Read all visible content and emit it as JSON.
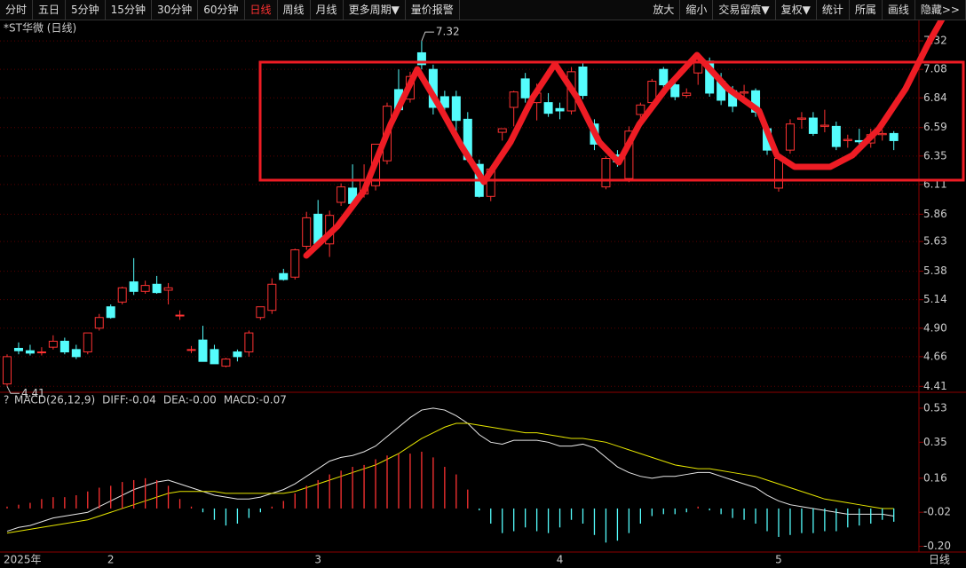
{
  "toolbar": {
    "left": [
      "分时",
      "五日",
      "5分钟",
      "15分钟",
      "30分钟",
      "60分钟",
      "日线",
      "周线",
      "月线",
      "更多周期▼",
      "量价报警"
    ],
    "active": 6,
    "right": [
      "放大",
      "缩小",
      "交易留痕▼",
      "复权▼",
      "统计",
      "所属",
      "画线",
      "隐藏>>"
    ]
  },
  "chart_data": [
    {
      "type": "candlestick",
      "title": "*ST华微 (日线)",
      "up_color": "#ff3232",
      "down_color": "#54fcfc",
      "categories": [
        "2025年",
        null,
        null,
        null,
        null,
        null,
        null,
        null,
        null,
        "2",
        null,
        null,
        null,
        null,
        null,
        null,
        null,
        null,
        null,
        null,
        null,
        null,
        null,
        null,
        null,
        null,
        null,
        "3",
        null,
        null,
        null,
        null,
        null,
        null,
        null,
        null,
        null,
        null,
        null,
        null,
        null,
        null,
        null,
        null,
        null,
        null,
        null,
        null,
        "4",
        null,
        null,
        null,
        null,
        null,
        null,
        null,
        null,
        null,
        null,
        null,
        null,
        null,
        null,
        null,
        null,
        null,
        null,
        "5",
        null,
        null,
        null,
        null,
        null,
        null,
        null,
        null,
        null,
        null
      ],
      "period_label": "日线",
      "open": [
        4.43,
        4.73,
        4.71,
        4.7,
        4.74,
        4.79,
        4.72,
        4.7,
        4.9,
        5.08,
        5.12,
        5.29,
        5.21,
        5.27,
        5.22,
        5.01,
        4.72,
        4.8,
        4.72,
        4.58,
        4.7,
        4.7,
        4.99,
        5.05,
        5.36,
        5.33,
        5.59,
        5.86,
        5.61,
        5.96,
        6.08,
        6.03,
        6.1,
        6.31,
        6.91,
        6.83,
        7.22,
        7.08,
        6.85,
        6.85,
        6.66,
        6.28,
        6.01,
        6.55,
        6.76,
        7.0,
        6.8,
        6.8,
        6.75,
        6.73,
        7.1,
        6.62,
        6.09,
        6.36,
        6.16,
        6.7,
        6.8,
        7.08,
        6.95,
        6.86,
        7.05,
        7.15,
        6.98,
        6.9,
        6.88,
        6.9,
        6.58,
        6.08,
        6.4,
        6.66,
        6.67,
        6.6,
        6.6,
        6.48,
        6.48,
        6.46,
        6.53,
        6.54
      ],
      "high": [
        4.68,
        4.78,
        4.76,
        4.74,
        4.84,
        4.82,
        4.76,
        4.86,
        5.02,
        5.1,
        5.25,
        5.49,
        5.3,
        5.34,
        5.28,
        5.05,
        4.75,
        4.92,
        4.76,
        4.65,
        4.72,
        4.88,
        5.08,
        5.32,
        5.4,
        5.57,
        5.88,
        5.98,
        5.89,
        6.12,
        6.28,
        6.28,
        6.45,
        6.8,
        7.08,
        7.06,
        7.32,
        7.12,
        6.9,
        6.9,
        6.72,
        6.32,
        6.25,
        6.58,
        6.9,
        7.05,
        6.96,
        6.88,
        6.8,
        7.1,
        7.15,
        6.66,
        6.35,
        6.4,
        6.6,
        6.8,
        7.0,
        7.1,
        7.0,
        6.92,
        7.22,
        7.18,
        7.05,
        6.94,
        6.95,
        6.92,
        6.62,
        6.35,
        6.66,
        6.72,
        6.72,
        6.74,
        6.64,
        6.53,
        6.58,
        6.58,
        6.57,
        6.56
      ],
      "low": [
        4.41,
        4.68,
        4.67,
        4.67,
        4.72,
        4.68,
        4.64,
        4.68,
        4.88,
        4.98,
        5.1,
        5.18,
        5.19,
        5.19,
        5.1,
        4.97,
        4.69,
        4.62,
        4.6,
        4.57,
        4.62,
        4.66,
        4.97,
        5.02,
        5.3,
        5.31,
        5.56,
        5.6,
        5.5,
        5.93,
        5.92,
        6.0,
        6.06,
        6.28,
        6.73,
        6.8,
        7.08,
        6.7,
        6.72,
        6.55,
        6.3,
        6.0,
        5.97,
        6.48,
        6.6,
        6.8,
        6.65,
        6.68,
        6.66,
        6.7,
        6.83,
        6.4,
        6.07,
        6.26,
        6.13,
        6.66,
        6.78,
        6.93,
        6.82,
        6.84,
        6.95,
        6.85,
        6.78,
        6.72,
        6.82,
        6.68,
        6.36,
        6.05,
        6.37,
        6.58,
        6.52,
        6.55,
        6.4,
        6.42,
        6.45,
        6.42,
        6.48,
        6.4
      ],
      "close": [
        4.66,
        4.71,
        4.69,
        4.7,
        4.79,
        4.7,
        4.66,
        4.86,
        4.99,
        4.99,
        5.24,
        5.21,
        5.26,
        5.2,
        5.24,
        5.01,
        4.72,
        4.62,
        4.6,
        4.64,
        4.66,
        4.86,
        5.08,
        5.27,
        5.31,
        5.56,
        5.83,
        5.61,
        5.85,
        6.09,
        5.95,
        6.14,
        6.45,
        6.77,
        6.74,
        7.02,
        7.12,
        6.76,
        6.76,
        6.65,
        6.32,
        6.01,
        6.24,
        6.58,
        6.89,
        6.84,
        6.88,
        6.71,
        6.73,
        7.06,
        6.86,
        6.45,
        6.33,
        6.3,
        6.56,
        6.78,
        6.98,
        6.95,
        6.85,
        6.88,
        7.17,
        6.88,
        6.82,
        6.77,
        6.89,
        6.72,
        6.4,
        6.33,
        6.62,
        6.67,
        6.54,
        6.61,
        6.43,
        6.49,
        6.47,
        6.53,
        6.54,
        6.48
      ],
      "annotations": [
        {
          "index": 36,
          "value": 7.32
        },
        {
          "index": 0,
          "value": 4.41
        }
      ],
      "ylim": [
        4.36,
        7.5
      ],
      "yticks": [
        7.32,
        7.08,
        6.84,
        6.59,
        6.35,
        6.11,
        5.86,
        5.63,
        5.38,
        5.14,
        {
          "value": 4.9,
          "label": "4.90"
        },
        4.66,
        4.41
      ],
      "grid": true
    },
    {
      "type": "macd",
      "legend": [
        "MACD(26,12,9)",
        "DIFF:-0.04",
        "DEA:-0.00",
        "MACD:-0.07"
      ],
      "series": [
        {
          "name": "DIFF",
          "color": "#e8e8e8",
          "values": [
            -0.12,
            -0.1,
            -0.09,
            -0.07,
            -0.05,
            -0.04,
            -0.03,
            -0.02,
            0.01,
            0.04,
            0.07,
            0.1,
            0.12,
            0.14,
            0.15,
            0.13,
            0.11,
            0.09,
            0.07,
            0.06,
            0.05,
            0.05,
            0.06,
            0.08,
            0.1,
            0.13,
            0.17,
            0.21,
            0.25,
            0.27,
            0.28,
            0.3,
            0.33,
            0.38,
            0.43,
            0.48,
            0.52,
            0.53,
            0.52,
            0.49,
            0.45,
            0.39,
            0.35,
            0.34,
            0.36,
            0.36,
            0.36,
            0.35,
            0.33,
            0.33,
            0.34,
            0.32,
            0.27,
            0.22,
            0.19,
            0.17,
            0.16,
            0.17,
            0.17,
            0.18,
            0.19,
            0.19,
            0.17,
            0.15,
            0.13,
            0.11,
            0.07,
            0.04,
            0.02,
            0.01,
            0.0,
            -0.01,
            -0.02,
            -0.03,
            -0.03,
            -0.03,
            -0.03,
            -0.04
          ]
        },
        {
          "name": "DEA",
          "color": "#e6e600",
          "values": [
            -0.13,
            -0.12,
            -0.11,
            -0.1,
            -0.09,
            -0.08,
            -0.07,
            -0.06,
            -0.04,
            -0.02,
            0.0,
            0.02,
            0.04,
            0.06,
            0.08,
            0.09,
            0.09,
            0.09,
            0.09,
            0.08,
            0.08,
            0.08,
            0.08,
            0.08,
            0.08,
            0.09,
            0.11,
            0.13,
            0.15,
            0.17,
            0.19,
            0.21,
            0.23,
            0.26,
            0.29,
            0.33,
            0.37,
            0.4,
            0.43,
            0.45,
            0.45,
            0.44,
            0.43,
            0.42,
            0.41,
            0.4,
            0.4,
            0.39,
            0.38,
            0.37,
            0.37,
            0.36,
            0.35,
            0.33,
            0.31,
            0.29,
            0.27,
            0.25,
            0.23,
            0.22,
            0.21,
            0.21,
            0.2,
            0.19,
            0.18,
            0.17,
            0.15,
            0.13,
            0.11,
            0.09,
            0.07,
            0.05,
            0.04,
            0.03,
            0.02,
            0.01,
            0.0,
            0.0
          ]
        },
        {
          "name": "MACD",
          "color": "#ff3232",
          "down_color": "#54fcfc",
          "values": [
            0.01,
            0.02,
            0.03,
            0.05,
            0.06,
            0.06,
            0.07,
            0.09,
            0.11,
            0.12,
            0.14,
            0.15,
            0.16,
            0.15,
            0.12,
            0.05,
            0.01,
            -0.02,
            -0.06,
            -0.09,
            -0.08,
            -0.05,
            -0.02,
            0.01,
            0.04,
            0.08,
            0.12,
            0.15,
            0.18,
            0.2,
            0.22,
            0.23,
            0.26,
            0.28,
            0.29,
            0.29,
            0.3,
            0.27,
            0.22,
            0.18,
            0.1,
            -0.01,
            -0.08,
            -0.13,
            -0.12,
            -0.1,
            -0.12,
            -0.13,
            -0.1,
            -0.06,
            -0.08,
            -0.14,
            -0.18,
            -0.17,
            -0.13,
            -0.08,
            -0.04,
            -0.03,
            -0.03,
            -0.02,
            0.01,
            -0.01,
            -0.03,
            -0.05,
            -0.06,
            -0.08,
            -0.12,
            -0.15,
            -0.14,
            -0.13,
            -0.13,
            -0.12,
            -0.12,
            -0.1,
            -0.09,
            -0.08,
            -0.06,
            -0.07
          ]
        }
      ],
      "ylim": [
        -0.23,
        0.6
      ],
      "yticks": [
        0.53,
        0.35,
        0.16,
        {
          "value": -0.02,
          "label": "-0.02"
        },
        {
          "value": -0.2,
          "label": "-0.20"
        }
      ]
    }
  ]
}
